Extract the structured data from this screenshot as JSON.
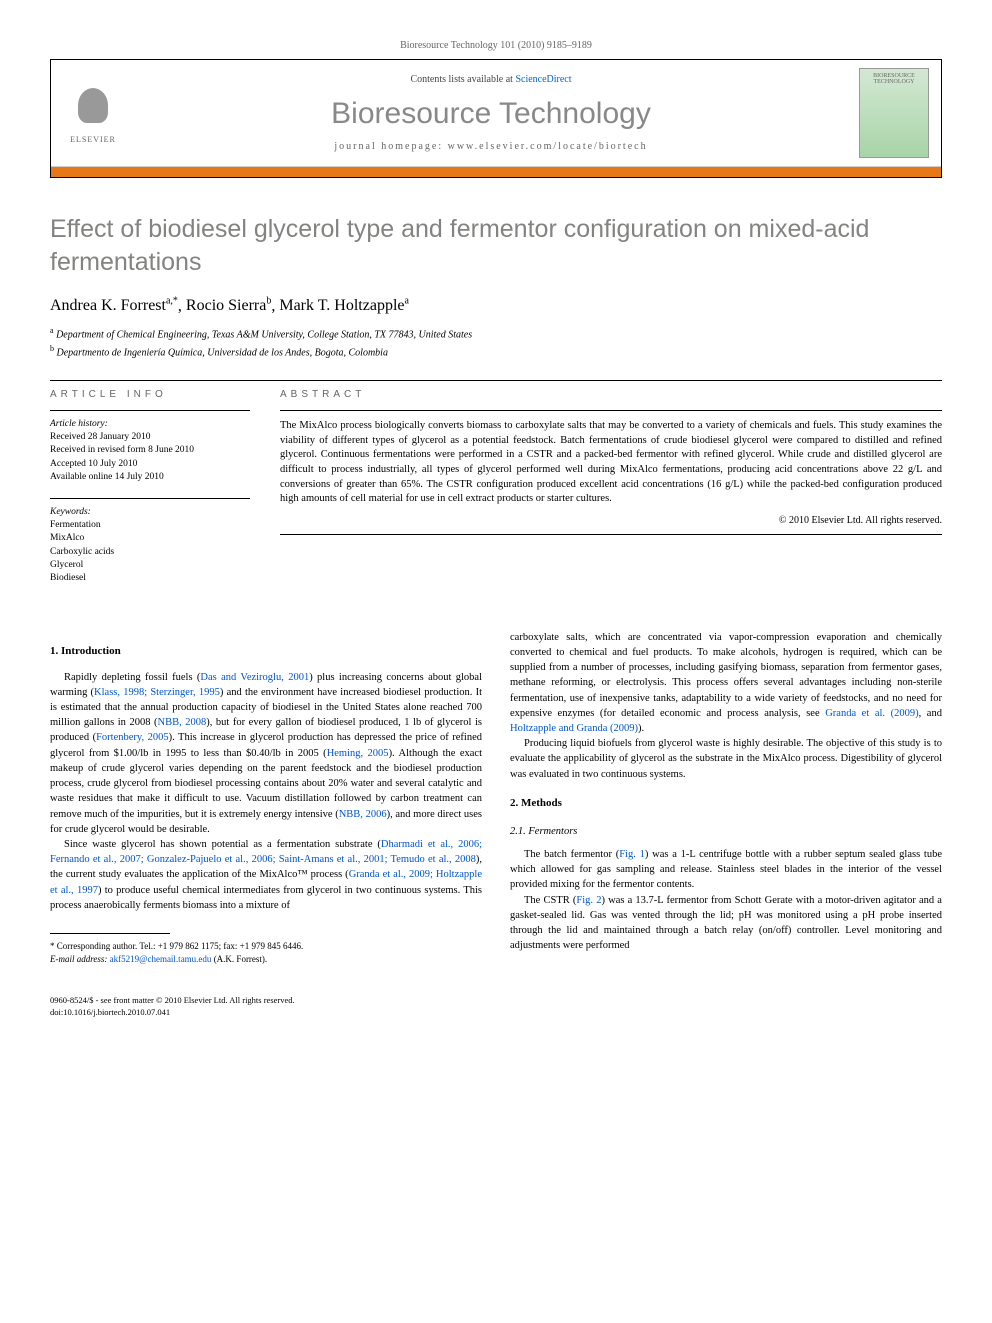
{
  "header": {
    "citation": "Bioresource Technology 101 (2010) 9185–9189",
    "contents_prefix": "Contents lists available at ",
    "contents_link": "ScienceDirect",
    "journal_name": "Bioresource Technology",
    "homepage_label": "journal homepage: ",
    "homepage_url": "www.elsevier.com/locate/biortech",
    "elsevier_label": "ELSEVIER",
    "cover_text": "BIORESOURCE TECHNOLOGY"
  },
  "title": "Effect of biodiesel glycerol type and fermentor configuration on mixed-acid fermentations",
  "authors": [
    {
      "name": "Andrea K. Forrest",
      "sup": "a,*"
    },
    {
      "name": "Rocio Sierra",
      "sup": "b"
    },
    {
      "name": "Mark T. Holtzapple",
      "sup": "a"
    }
  ],
  "affiliations": [
    {
      "sup": "a",
      "text": "Department of Chemical Engineering, Texas A&M University, College Station, TX 77843, United States"
    },
    {
      "sup": "b",
      "text": "Departmento de Ingeniería Química, Universidad de los Andes, Bogota, Colombia"
    }
  ],
  "article_info": {
    "heading": "ARTICLE INFO",
    "history_label": "Article history:",
    "history": [
      "Received 28 January 2010",
      "Received in revised form 8 June 2010",
      "Accepted 10 July 2010",
      "Available online 14 July 2010"
    ],
    "keywords_label": "Keywords:",
    "keywords": [
      "Fermentation",
      "MixAlco",
      "Carboxylic acids",
      "Glycerol",
      "Biodiesel"
    ]
  },
  "abstract": {
    "heading": "ABSTRACT",
    "text": "The MixAlco process biologically converts biomass to carboxylate salts that may be converted to a variety of chemicals and fuels. This study examines the viability of different types of glycerol as a potential feedstock. Batch fermentations of crude biodiesel glycerol were compared to distilled and refined glycerol. Continuous fermentations were performed in a CSTR and a packed-bed fermentor with refined glycerol. While crude and distilled glycerol are difficult to process industrially, all types of glycerol performed well during MixAlco fermentations, producing acid concentrations above 22 g/L and conversions of greater than 65%. The CSTR configuration produced excellent acid concentrations (16 g/L) while the packed-bed configuration produced high amounts of cell material for use in cell extract products or starter cultures.",
    "copyright": "© 2010 Elsevier Ltd. All rights reserved."
  },
  "body": {
    "intro_heading": "1. Introduction",
    "intro_p1_a": "Rapidly depleting fossil fuels (",
    "intro_ref1": "Das and Veziroglu, 2001",
    "intro_p1_b": ") plus increasing concerns about global warming (",
    "intro_ref2": "Klass, 1998; Sterzinger, 1995",
    "intro_p1_c": ") and the environment have increased biodiesel production. It is estimated that the annual production capacity of biodiesel in the United States alone reached 700 million gallons in 2008 (",
    "intro_ref3": "NBB, 2008",
    "intro_p1_d": "), but for every gallon of biodiesel produced, 1 lb of glycerol is produced (",
    "intro_ref4": "Fortenbery, 2005",
    "intro_p1_e": "). This increase in glycerol production has depressed the price of refined glycerol from $1.00/lb in 1995 to less than $0.40/lb in 2005 (",
    "intro_ref5": "Heming, 2005",
    "intro_p1_f": "). Although the exact makeup of crude glycerol varies depending on the parent feedstock and the biodiesel production process, crude glycerol from biodiesel processing contains about 20% water and several catalytic and waste residues that make it difficult to use. Vacuum distillation followed by carbon treatment can remove much of the impurities, but it is extremely energy intensive (",
    "intro_ref6": "NBB, 2006",
    "intro_p1_g": "), and more direct uses for crude glycerol would be desirable.",
    "intro_p2_a": "Since waste glycerol has shown potential as a fermentation substrate (",
    "intro_ref7": "Dharmadi et al., 2006; Fernando et al., 2007; Gonzalez-Pajuelo et al., 2006; Saint-Amans et al., 2001; Temudo et al., 2008",
    "intro_p2_b": "), the current study evaluates the application of the MixAlco™ process (",
    "intro_ref8": "Granda et al., 2009; Holtzapple et al., 1997",
    "intro_p2_c": ") to produce useful chemical intermediates from glycerol in two continuous systems. This process anaerobically ferments biomass into a mixture of",
    "col2_p1_a": "carboxylate salts, which are concentrated via vapor-compression evaporation and chemically converted to chemical and fuel products. To make alcohols, hydrogen is required, which can be supplied from a number of processes, including gasifying biomass, separation from fermentor gases, methane reforming, or electrolysis. This process offers several advantages including non-sterile fermentation, use of inexpensive tanks, adaptability to a wide variety of feedstocks, and no need for expensive enzymes (for detailed economic and process analysis, see ",
    "col2_ref1": "Granda et al. (2009)",
    "col2_p1_b": ", and ",
    "col2_ref2": "Holtzapple and Granda (2009)",
    "col2_p1_c": ").",
    "col2_p2": "Producing liquid biofuels from glycerol waste is highly desirable. The objective of this study is to evaluate the applicability of glycerol as the substrate in the MixAlco process. Digestibility of glycerol was evaluated in two continuous systems.",
    "methods_heading": "2. Methods",
    "fermentors_heading": "2.1. Fermentors",
    "methods_p1_a": "The batch fermentor (",
    "methods_fig1": "Fig. 1",
    "methods_p1_b": ") was a 1-L centrifuge bottle with a rubber septum sealed glass tube which allowed for gas sampling and release. Stainless steel blades in the interior of the vessel provided mixing for the fermentor contents.",
    "methods_p2_a": "The CSTR (",
    "methods_fig2": "Fig. 2",
    "methods_p2_b": ") was a 13.7-L fermentor from Schott Gerate with a motor-driven agitator and a gasket-sealed lid. Gas was vented through the lid; pH was monitored using a pH probe inserted through the lid and maintained through a batch relay (on/off) controller. Level monitoring and adjustments were performed"
  },
  "footnote": {
    "corr_label": "* Corresponding author. Tel.: +1 979 862 1175; fax: +1 979 845 6446.",
    "email_label": "E-mail address:",
    "email": "akf5219@chemail.tamu.edu",
    "email_author": "(A.K. Forrest)."
  },
  "footer": {
    "left1": "0960-8524/$ - see front matter © 2010 Elsevier Ltd. All rights reserved.",
    "left2": "doi:10.1016/j.biortech.2010.07.041"
  },
  "colors": {
    "orange_bar": "#e67817",
    "link": "#0056cc",
    "gray_text": "#838381"
  }
}
